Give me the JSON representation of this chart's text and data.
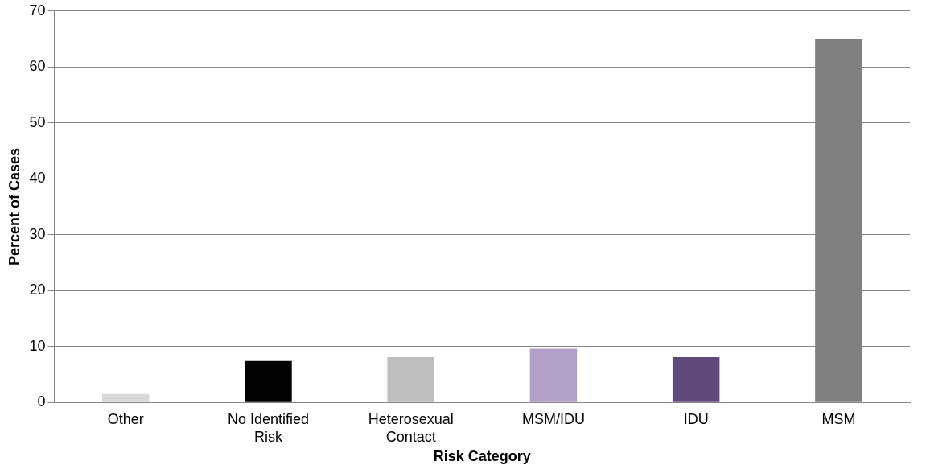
{
  "chart_data": {
    "type": "bar",
    "xlabel": "Risk Category",
    "ylabel": "Percent of Cases",
    "categories": [
      [
        "Other"
      ],
      [
        "No Identified",
        "Risk"
      ],
      [
        "Heterosexual",
        "Contact"
      ],
      [
        "MSM/IDU"
      ],
      [
        "IDU"
      ],
      [
        "MSM"
      ]
    ],
    "values": [
      1.5,
      7.4,
      8.1,
      9.6,
      8.1,
      65
    ],
    "colors": [
      "#d9d9d9",
      "#000000",
      "#bfbfbf",
      "#b1a0c7",
      "#604a7b",
      "#808080"
    ],
    "ylim": [
      0,
      70
    ],
    "yticks": [
      0,
      10,
      20,
      30,
      40,
      50,
      60,
      70
    ],
    "grid": "y",
    "legend": false
  }
}
